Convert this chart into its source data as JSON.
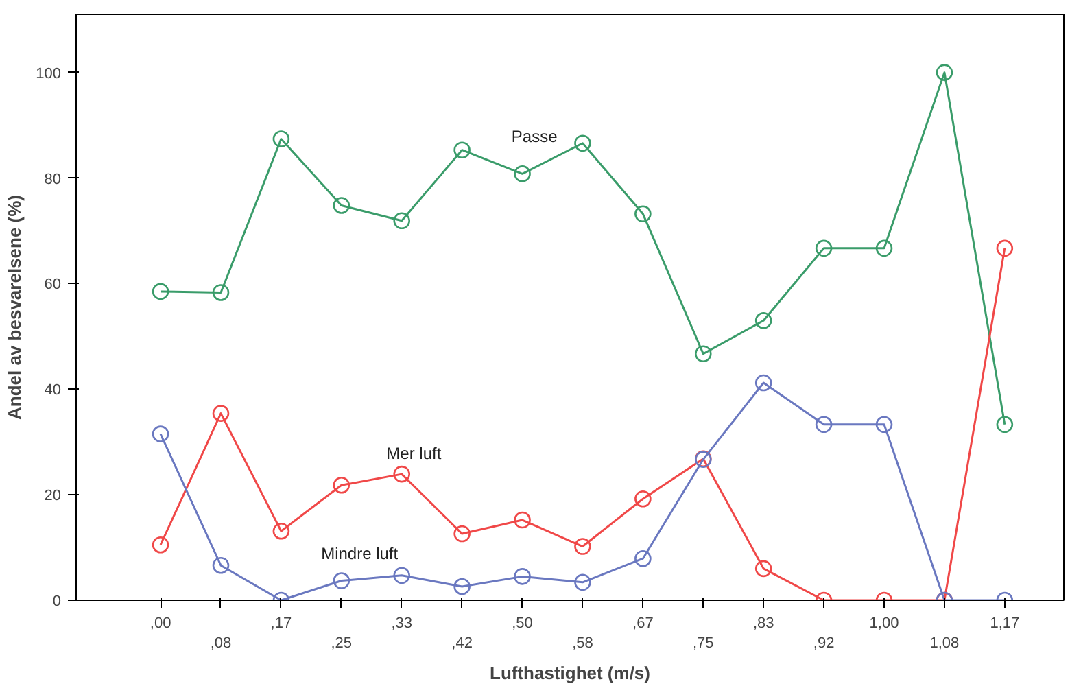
{
  "chart_data": {
    "type": "line",
    "xlabel": "Lufthastighet (m/s)",
    "ylabel": "Andel av besvarelsene (%)",
    "categories": [
      ",00",
      ",08",
      ",17",
      ",25",
      ",33",
      ",42",
      ",50",
      ",58",
      ",67",
      ",75",
      ",83",
      ",92",
      "1,00",
      "1,08",
      "1,17"
    ],
    "ylim": [
      0,
      111
    ],
    "yticks": [
      0,
      20,
      40,
      60,
      80,
      100
    ],
    "grid": false,
    "marker": "circle",
    "line_style": "solid",
    "series": [
      {
        "name": "Passe",
        "color": "#3a9c6a",
        "values": [
          58.5,
          58.3,
          87.4,
          74.8,
          71.9,
          85.3,
          80.8,
          86.6,
          73.2,
          46.7,
          53.0,
          66.7,
          66.7,
          100,
          33.3
        ]
      },
      {
        "name": "Mer luft",
        "color": "#f04848",
        "values": [
          10.5,
          35.4,
          13.1,
          21.8,
          23.9,
          12.6,
          15.2,
          10.2,
          19.2,
          26.8,
          6.0,
          0,
          0,
          0,
          66.7
        ]
      },
      {
        "name": "Mindre luft",
        "color": "#6a78c0",
        "values": [
          31.5,
          6.6,
          0,
          3.7,
          4.7,
          2.6,
          4.5,
          3.4,
          7.9,
          26.7,
          41.2,
          33.3,
          33.3,
          0,
          0
        ]
      }
    ]
  }
}
